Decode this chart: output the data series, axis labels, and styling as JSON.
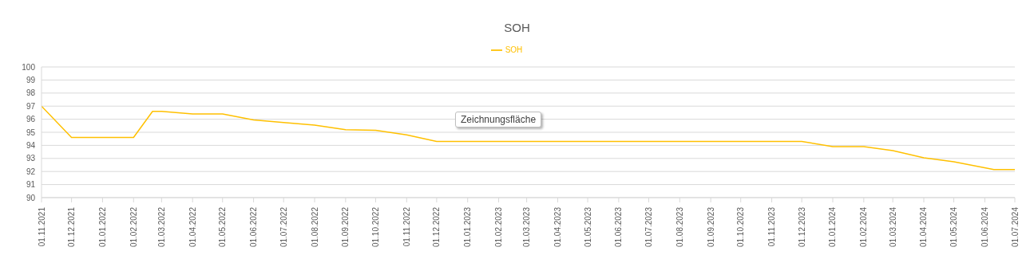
{
  "chart_data": {
    "type": "line",
    "title": "SOH",
    "legend": "top",
    "grid": "y",
    "x": [
      "2021-11-01",
      "2021-12-01",
      "2022-01-01",
      "2022-02-01",
      "2022-02-20",
      "2022-03-01",
      "2022-04-01",
      "2022-05-01",
      "2022-06-01",
      "2022-07-01",
      "2022-08-01",
      "2022-09-01",
      "2022-10-01",
      "2022-11-01",
      "2022-12-01",
      "2023-01-01",
      "2023-02-01",
      "2023-03-01",
      "2023-04-01",
      "2023-05-01",
      "2023-06-01",
      "2023-07-01",
      "2023-08-01",
      "2023-09-01",
      "2023-10-01",
      "2023-11-01",
      "2023-12-01",
      "2024-01-01",
      "2024-02-01",
      "2024-03-01",
      "2024-04-01",
      "2024-05-01",
      "2024-06-10",
      "2024-07-01"
    ],
    "series": [
      {
        "name": "SOH",
        "color": "#ffc000",
        "values": [
          97,
          94.6,
          94.6,
          94.6,
          96.6,
          96.6,
          96.4,
          96.4,
          95.95,
          95.75,
          95.55,
          95.2,
          95.15,
          94.8,
          94.3,
          94.3,
          94.3,
          94.3,
          94.3,
          94.3,
          94.3,
          94.3,
          94.3,
          94.3,
          94.3,
          94.3,
          94.3,
          93.9,
          93.9,
          93.6,
          93.05,
          92.75,
          92.15,
          92.15
        ]
      }
    ],
    "xlim": [
      "2021-11-01",
      "2024-07-01"
    ],
    "xticks": [
      {
        "value": "2021-11-01",
        "label": "01.11.2021"
      },
      {
        "value": "2021-12-01",
        "label": "01.12.2021"
      },
      {
        "value": "2022-01-01",
        "label": "01.01.2022"
      },
      {
        "value": "2022-02-01",
        "label": "01.02.2022"
      },
      {
        "value": "2022-03-01",
        "label": "01.03.2022"
      },
      {
        "value": "2022-04-01",
        "label": "01.04.2022"
      },
      {
        "value": "2022-05-01",
        "label": "01.05.2022"
      },
      {
        "value": "2022-06-01",
        "label": "01.06.2022"
      },
      {
        "value": "2022-07-01",
        "label": "01.07.2022"
      },
      {
        "value": "2022-08-01",
        "label": "01.08.2022"
      },
      {
        "value": "2022-09-01",
        "label": "01.09.2022"
      },
      {
        "value": "2022-10-01",
        "label": "01.10.2022"
      },
      {
        "value": "2022-11-01",
        "label": "01.11.2022"
      },
      {
        "value": "2022-12-01",
        "label": "01.12.2022"
      },
      {
        "value": "2023-01-01",
        "label": "01.01.2023"
      },
      {
        "value": "2023-02-01",
        "label": "01.02.2023"
      },
      {
        "value": "2023-03-01",
        "label": "01.03.2023"
      },
      {
        "value": "2023-04-01",
        "label": "01.04.2023"
      },
      {
        "value": "2023-05-01",
        "label": "01.05.2023"
      },
      {
        "value": "2023-06-01",
        "label": "01.06.2023"
      },
      {
        "value": "2023-07-01",
        "label": "01.07.2023"
      },
      {
        "value": "2023-08-01",
        "label": "01.08.2023"
      },
      {
        "value": "2023-09-01",
        "label": "01.09.2023"
      },
      {
        "value": "2023-10-01",
        "label": "01.10.2023"
      },
      {
        "value": "2023-11-01",
        "label": "01.11.2023"
      },
      {
        "value": "2023-12-01",
        "label": "01.12.2023"
      },
      {
        "value": "2024-01-01",
        "label": "01.01.2024"
      },
      {
        "value": "2024-02-01",
        "label": "01.02.2024"
      },
      {
        "value": "2024-03-01",
        "label": "01.03.2024"
      },
      {
        "value": "2024-04-01",
        "label": "01.04.2024"
      },
      {
        "value": "2024-05-01",
        "label": "01.05.2024"
      },
      {
        "value": "2024-06-01",
        "label": "01.06.2024"
      },
      {
        "value": "2024-07-01",
        "label": "01.07.2024"
      }
    ],
    "ylim": [
      90,
      100
    ],
    "yticks": [
      90,
      91,
      92,
      93,
      94,
      95,
      96,
      97,
      98,
      99,
      100
    ],
    "annotations": [
      "Zeichnungsfläche"
    ]
  }
}
